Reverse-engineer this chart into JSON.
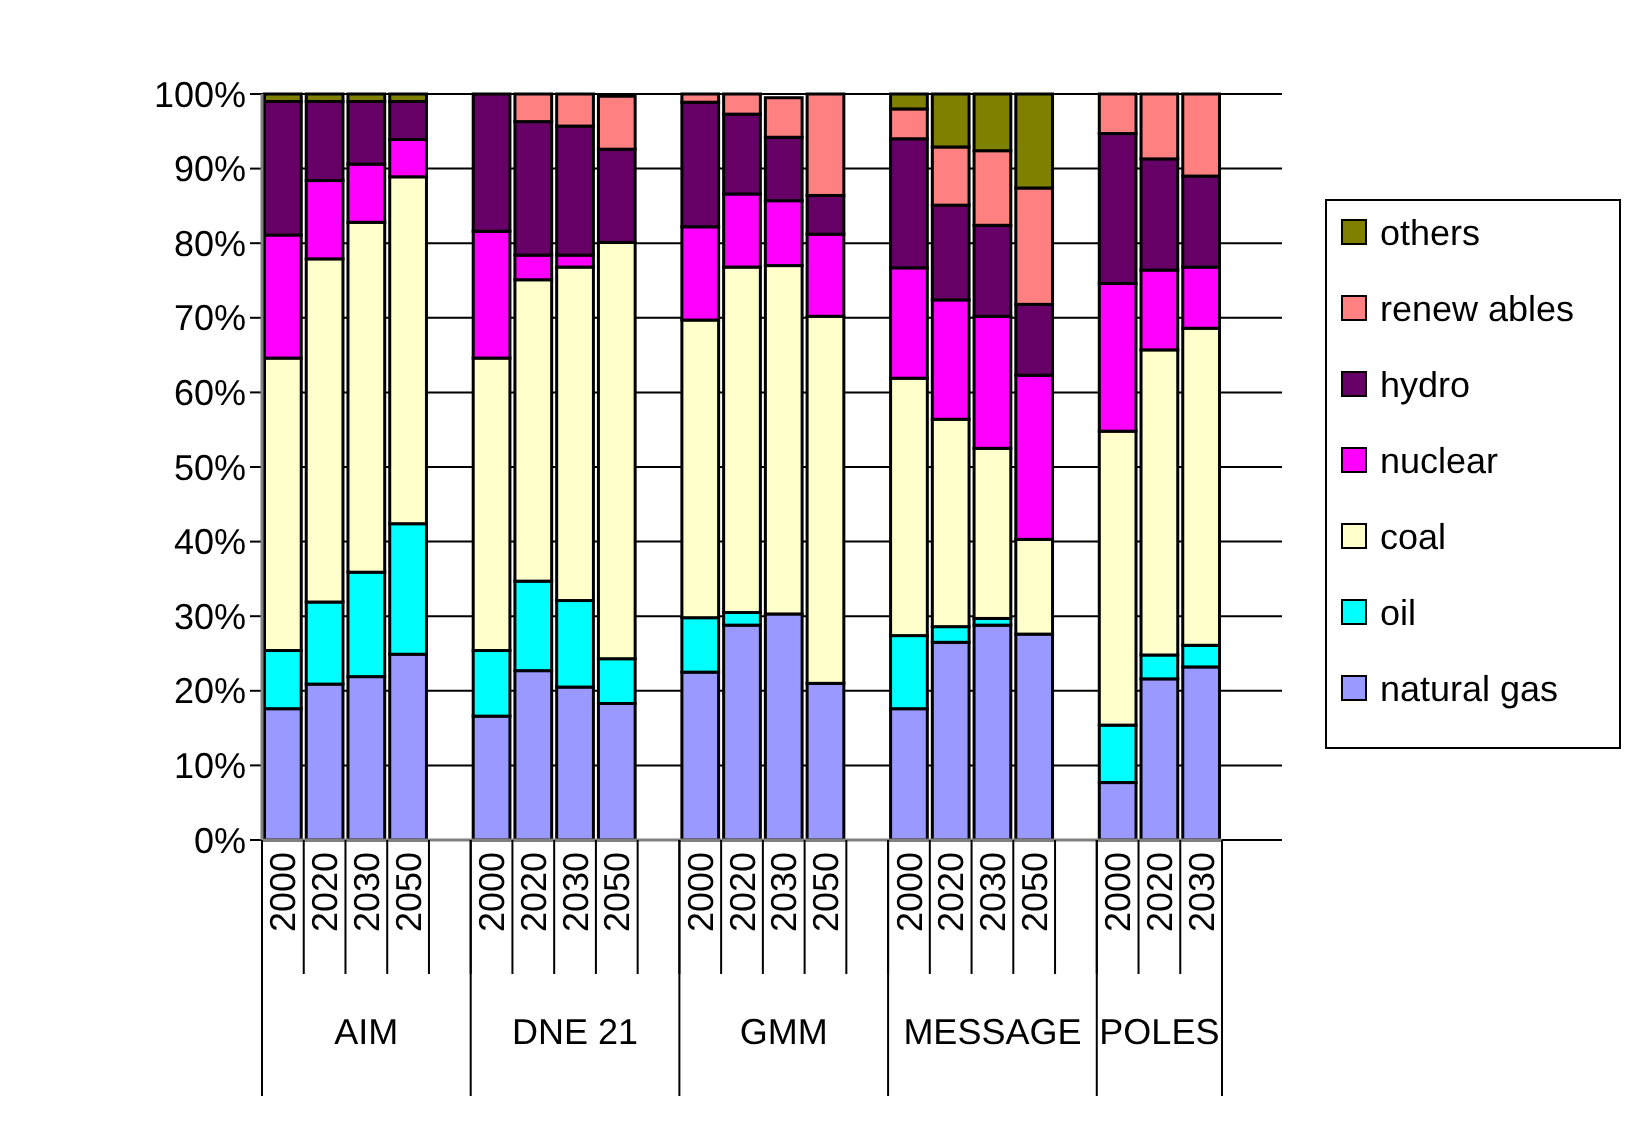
{
  "chart_data": {
    "type": "bar",
    "stacked": true,
    "categories": [
      "2000",
      "2020",
      "2030",
      "2050",
      null,
      "2000",
      "2020",
      "2030",
      "2050",
      null,
      "2000",
      "2020",
      "2030",
      "2050",
      null,
      "2000",
      "2020",
      "2030",
      "2050",
      null,
      "2000",
      "2020",
      "2030"
    ],
    "annotations": [
      "AIM",
      "DNE 21",
      "GMM",
      "MESSAGE",
      "POLES"
    ],
    "series": [
      {
        "name": "natural gas",
        "color": "#9999ff",
        "values": [
          17.6,
          20.9,
          21.9,
          24.9,
          null,
          16.6,
          22.7,
          20.5,
          18.3,
          null,
          22.5,
          28.8,
          30.3,
          21.0,
          null,
          17.6,
          26.5,
          28.8,
          27.6,
          null,
          7.7,
          21.6,
          23.2
        ]
      },
      {
        "name": "oil",
        "color": "#00ffff",
        "values": [
          7.8,
          11.0,
          14.0,
          17.5,
          null,
          8.8,
          12.0,
          11.6,
          6.0,
          null,
          7.3,
          1.7,
          null,
          0,
          null,
          9.8,
          2.1,
          0.9,
          0,
          null,
          7.7,
          3.2,
          2.9
        ]
      },
      {
        "name": "coal",
        "color": "#ffffcc",
        "values": [
          39.2,
          46.0,
          46.9,
          46.5,
          null,
          39.2,
          40.4,
          44.7,
          55.8,
          null,
          39.9,
          46.3,
          46.7,
          49.2,
          null,
          34.5,
          27.8,
          22.8,
          12.7,
          null,
          39.4,
          40.9,
          42.5
        ]
      },
      {
        "name": "nuclear",
        "color": "#ff00ff",
        "values": [
          16.5,
          10.5,
          7.8,
          5.0,
          null,
          17.0,
          3.3,
          1.6,
          null,
          null,
          12.5,
          9.8,
          8.7,
          11.0,
          null,
          14.8,
          16.0,
          17.7,
          22.0,
          null,
          19.8,
          10.7,
          8.2
        ]
      },
      {
        "name": "hydro",
        "color": "#660066",
        "values": [
          17.9,
          10.6,
          8.4,
          5.1,
          null,
          18.4,
          17.9,
          17.3,
          12.5,
          null,
          16.7,
          10.7,
          8.5,
          5.2,
          null,
          17.3,
          12.7,
          12.2,
          9.5,
          null,
          20.1,
          14.9,
          12.2
        ]
      },
      {
        "name": "renew ables",
        "color": "#ff8080",
        "values": [
          0,
          0,
          0,
          0,
          null,
          0,
          3.7,
          4.3,
          7.1,
          null,
          1.1,
          2.7,
          5.3,
          13.6,
          null,
          4.0,
          7.8,
          10.0,
          15.6,
          null,
          5.3,
          8.7,
          11.0
        ]
      },
      {
        "name": "others",
        "color": "#808000",
        "values": [
          1.0,
          1.0,
          1.0,
          1.0,
          null,
          0,
          0,
          0,
          0,
          null,
          0,
          0,
          0,
          0,
          null,
          2.0,
          7.1,
          7.6,
          12.6,
          null,
          0,
          0,
          0
        ]
      }
    ],
    "ylim": [
      0,
      100
    ],
    "yticks": [
      {
        "value": 0,
        "label": "0%"
      },
      {
        "value": 10,
        "label": "10%"
      },
      {
        "value": 20,
        "label": "20%"
      },
      {
        "value": 30,
        "label": "30%"
      },
      {
        "value": 40,
        "label": "40%"
      },
      {
        "value": 50,
        "label": "50%"
      },
      {
        "value": 60,
        "label": "60%"
      },
      {
        "value": 70,
        "label": "70%"
      },
      {
        "value": 80,
        "label": "80%"
      },
      {
        "value": 90,
        "label": "90%"
      },
      {
        "value": 100,
        "label": "100%"
      }
    ],
    "grid": "y",
    "legend": "right"
  }
}
